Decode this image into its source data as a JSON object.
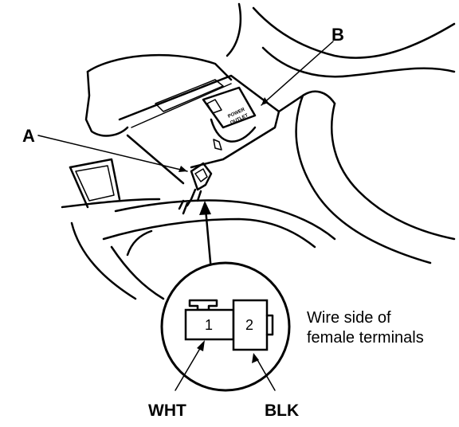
{
  "callouts": {
    "a": "A",
    "b": "B"
  },
  "outlet_label": {
    "line1": "POWER",
    "line2": "OUTLET"
  },
  "connector": {
    "terminal_1": "1",
    "terminal_2": "2",
    "wire_1_color": "WHT",
    "wire_2_color": "BLK"
  },
  "note": {
    "line1": "Wire side of",
    "line2": "female terminals"
  }
}
